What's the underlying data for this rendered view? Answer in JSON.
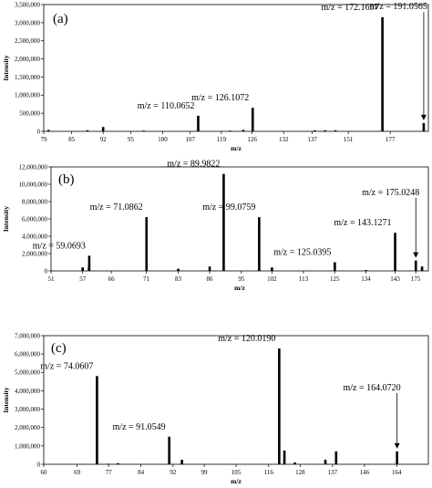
{
  "chart_data": [
    {
      "type": "bar",
      "panel_label": "(a)",
      "xlabel": "m/z",
      "ylabel": "Intensity",
      "xlim": [
        79,
        193
      ],
      "ylim": [
        0,
        3500000
      ],
      "yticks": [
        0,
        500000,
        1000000,
        1500000,
        2000000,
        2500000,
        3000000,
        3500000
      ],
      "ytick_labels": [
        "0",
        "500,000",
        "1,000,000",
        "1,500,000",
        "2,000,000",
        "2,500,000",
        "3,000,000",
        "3,500,000"
      ],
      "xticks": [
        79,
        85,
        92,
        95,
        100,
        107,
        119,
        126,
        132,
        137,
        151,
        177
      ],
      "xtick_labels": [
        "79",
        "85",
        "92",
        "95",
        "100",
        "107",
        "119",
        "126",
        "132",
        "137",
        "151",
        "177"
      ],
      "xtick_frac": [
        0.0,
        0.0727,
        0.1545,
        0.2264,
        0.3091,
        0.3809,
        0.4618,
        0.5418,
        0.6237,
        0.6982,
        0.7918,
        0.9009
      ],
      "peaks": [
        {
          "x": 80.0,
          "y": 40000
        },
        {
          "x": 88.5,
          "y": 30000
        },
        {
          "x": 92.0,
          "y": 120000
        },
        {
          "x": 97.0,
          "y": 20000
        },
        {
          "x": 110.0652,
          "y": 430000
        },
        {
          "x": 121.0,
          "y": 20000
        },
        {
          "x": 124.0,
          "y": 40000
        },
        {
          "x": 126.1072,
          "y": 650000
        },
        {
          "x": 138.0,
          "y": 30000
        },
        {
          "x": 142.0,
          "y": 30000
        },
        {
          "x": 146.0,
          "y": 30000
        },
        {
          "x": 172.1697,
          "y": 3150000
        },
        {
          "x": 191.0565,
          "y": 230000
        }
      ],
      "annotations": [
        {
          "text": "m/z = 110.0652",
          "x": 110.0652,
          "arrow": false
        },
        {
          "text": "m/z = 126.1072",
          "x": 126.1072,
          "arrow": false
        },
        {
          "text": "m/z = 172.1697",
          "x": 172.1697,
          "arrow": false
        },
        {
          "text": "m/z = 191.0565",
          "x": 191.0565,
          "arrow": true
        }
      ]
    },
    {
      "type": "bar",
      "panel_label": "(b)",
      "xlabel": "m/z",
      "ylabel": "Intensity",
      "xlim": [
        51,
        179
      ],
      "ylim": [
        0,
        12000000
      ],
      "yticks": [
        0,
        2000000,
        4000000,
        6000000,
        8000000,
        10000000,
        12000000
      ],
      "ytick_labels": [
        "0",
        "2,000,000",
        "4,000,000",
        "6,000,000",
        "8,000,000",
        "10,000,000",
        "12,000,000"
      ],
      "xticks": [
        51,
        57,
        66,
        71,
        83,
        86,
        95,
        102,
        113,
        125,
        134,
        143,
        175
      ],
      "xtick_labels": [
        "51",
        "57",
        "66",
        "71",
        "83",
        "86",
        "95",
        "102",
        "113",
        "125",
        "134",
        "143",
        "175"
      ],
      "xtick_frac": [
        0.0,
        0.0838,
        0.1597,
        0.2524,
        0.3371,
        0.4204,
        0.5044,
        0.5855,
        0.669,
        0.7517,
        0.8345,
        0.9117,
        0.9666
      ],
      "peaks": [
        {
          "x": 57.0,
          "y": 400000
        },
        {
          "x": 59.0,
          "y": 450000
        },
        {
          "x": 59.0693,
          "y": 1750000
        },
        {
          "x": 71.0862,
          "y": 6200000
        },
        {
          "x": 83.0,
          "y": 250000
        },
        {
          "x": 86.0,
          "y": 500000
        },
        {
          "x": 89.9822,
          "y": 11200000
        },
        {
          "x": 99.0759,
          "y": 6200000
        },
        {
          "x": 102.0,
          "y": 400000
        },
        {
          "x": 125.0395,
          "y": 1000000
        },
        {
          "x": 134.0,
          "y": 100000
        },
        {
          "x": 143.1271,
          "y": 4400000
        },
        {
          "x": 175.0248,
          "y": 1200000
        },
        {
          "x": 177.0,
          "y": 500000
        }
      ],
      "annotations": [
        {
          "text": "m/z = 59.0693",
          "x": 59.0693,
          "arrow": false
        },
        {
          "text": "m/z = 71.0862",
          "x": 71.0862,
          "arrow": false
        },
        {
          "text": "m/z = 89.9822",
          "x": 89.9822,
          "arrow": false
        },
        {
          "text": "m/z = 99.0759",
          "x": 99.0759,
          "arrow": false
        },
        {
          "text": "m/z = 125.0395",
          "x": 125.0395,
          "arrow": false
        },
        {
          "text": "m/z = 143.1271",
          "x": 143.1271,
          "arrow": false
        },
        {
          "text": "m/z = 175.0248",
          "x": 175.0248,
          "arrow": true
        }
      ]
    },
    {
      "type": "bar",
      "panel_label": "(c)",
      "xlabel": "m/z",
      "ylabel": "Intensity",
      "xlim": [
        60,
        170
      ],
      "ylim": [
        0,
        7000000
      ],
      "yticks": [
        0,
        1000000,
        2000000,
        3000000,
        4000000,
        5000000,
        6000000,
        7000000
      ],
      "ytick_labels": [
        "0",
        "1,000,000",
        "2,000,000",
        "3,000,000",
        "4,000,000",
        "5,000,000",
        "6,000,000",
        "7,000,000"
      ],
      "xticks": [
        60,
        69,
        77,
        84,
        92,
        99,
        105,
        116,
        128,
        137,
        146,
        164
      ],
      "xtick_labels": [
        "60",
        "69",
        "77",
        "84",
        "92",
        "99",
        "105",
        "116",
        "128",
        "137",
        "146",
        "164"
      ],
      "xtick_frac": [
        0.0,
        0.0867,
        0.1685,
        0.2528,
        0.3361,
        0.4172,
        0.5,
        0.5848,
        0.6667,
        0.751,
        0.8339,
        0.9176
      ],
      "peaks": [
        {
          "x": 74.0607,
          "y": 4800000
        },
        {
          "x": 77.0,
          "y": 30000
        },
        {
          "x": 79.0,
          "y": 60000
        },
        {
          "x": 91.0549,
          "y": 1500000
        },
        {
          "x": 94.0,
          "y": 250000
        },
        {
          "x": 120.019,
          "y": 6300000
        },
        {
          "x": 122.0,
          "y": 750000
        },
        {
          "x": 126.0,
          "y": 100000
        },
        {
          "x": 135.0,
          "y": 250000
        },
        {
          "x": 138.0,
          "y": 700000
        },
        {
          "x": 164.072,
          "y": 700000
        }
      ],
      "annotations": [
        {
          "text": "m/z = 74.0607",
          "x": 74.0607,
          "arrow": false
        },
        {
          "text": "m/z = 91.0549",
          "x": 91.0549,
          "arrow": false
        },
        {
          "text": "m/z = 120.0190",
          "x": 120.019,
          "arrow": false
        },
        {
          "text": "m/z = 164.0720",
          "x": 164.072,
          "arrow": true
        }
      ]
    }
  ]
}
